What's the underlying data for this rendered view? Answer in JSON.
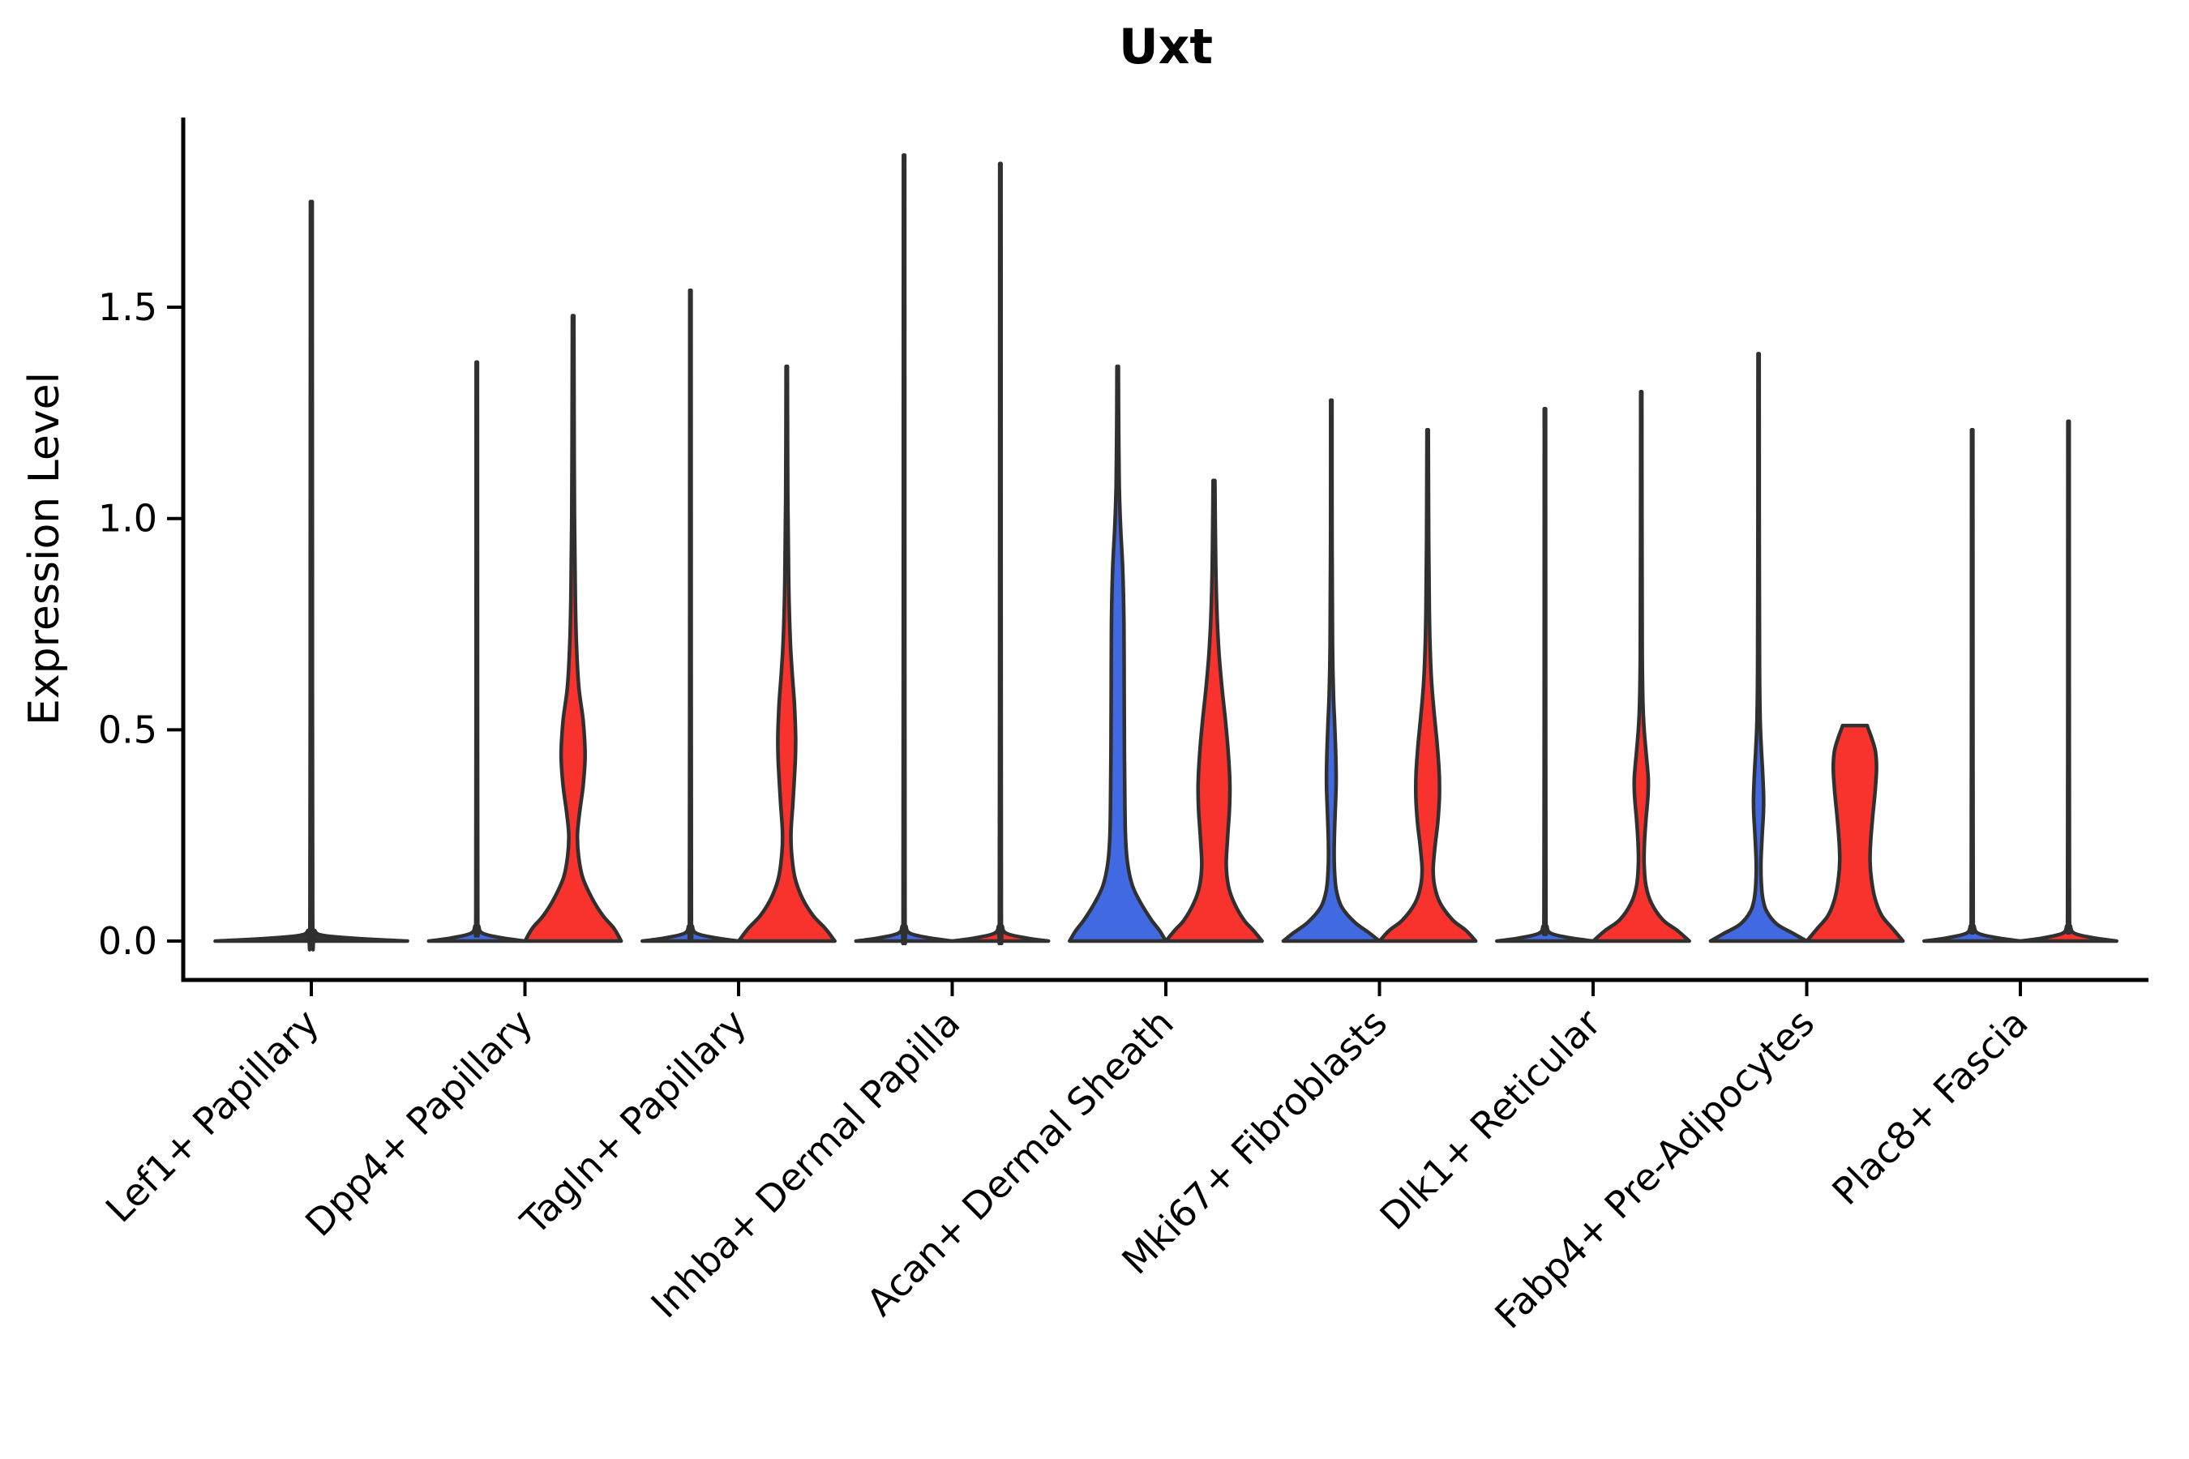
{
  "chart_data": {
    "type": "violin",
    "title": "Uxt",
    "ylabel": "Expression Level",
    "xlabel": "",
    "grid": false,
    "legend": "none",
    "ytick_labels": [
      "0.0",
      "0.5",
      "1.0",
      "1.5"
    ],
    "ytick_values": [
      0.0,
      0.5,
      1.0,
      1.5
    ],
    "ylim": [
      -0.09,
      1.95
    ],
    "colors": {
      "split_a_blue": "#4169E1",
      "split_b_red": "#F8322C",
      "single_dark": "#333333",
      "outline": "#303030",
      "axis": "#000000",
      "text": "#000000",
      "background": "#ffffff"
    },
    "categories": [
      "Lef1+ Papillary",
      "Dpp4+ Papillary",
      "Tagln+ Papillary",
      "Inhba+ Dermal Papilla",
      "Acan+ Dermal Sheath",
      "Mki67+ Fibroblasts",
      "Dlk1+ Reticular",
      "Fabp4+ Pre-Adipocytes",
      "Plac8+ Fascia"
    ],
    "groups": [
      {
        "category": "Lef1+ Papillary",
        "violins": [
          {
            "side": "single",
            "fill": "single_dark",
            "max_expression": 1.75,
            "profile": [
              [
                0,
                1
              ],
              [
                0.005,
                0.55
              ],
              [
                0.013,
                0.13
              ],
              [
                0.025,
                0.035
              ],
              [
                0.05,
                0.014
              ],
              [
                0.9,
                0.011
              ],
              [
                1.75,
                0.009
              ]
            ]
          }
        ]
      },
      {
        "category": "Dpp4+ Papillary",
        "violins": [
          {
            "side": "left",
            "fill": "split_a_blue",
            "max_expression": 1.37,
            "profile": [
              [
                0,
                1
              ],
              [
                0.007,
                0.55
              ],
              [
                0.018,
                0.13
              ],
              [
                0.035,
                0.04
              ],
              [
                0.07,
                0.02
              ],
              [
                0.7,
                0.016
              ],
              [
                1.37,
                0.013
              ]
            ]
          },
          {
            "side": "right",
            "fill": "split_b_red",
            "max_expression": 1.48,
            "profile": [
              [
                0,
                1
              ],
              [
                0.03,
                0.85
              ],
              [
                0.06,
                0.62
              ],
              [
                0.1,
                0.4
              ],
              [
                0.15,
                0.2
              ],
              [
                0.2,
                0.115
              ],
              [
                0.25,
                0.09
              ],
              [
                0.3,
                0.13
              ],
              [
                0.37,
                0.21
              ],
              [
                0.44,
                0.25
              ],
              [
                0.52,
                0.21
              ],
              [
                0.6,
                0.12
              ],
              [
                0.7,
                0.07
              ],
              [
                0.82,
                0.045
              ],
              [
                1.0,
                0.028
              ],
              [
                1.25,
                0.02
              ],
              [
                1.48,
                0.015
              ]
            ]
          }
        ]
      },
      {
        "category": "Tagln+ Papillary",
        "violins": [
          {
            "side": "left",
            "fill": "split_a_blue",
            "max_expression": 1.54,
            "profile": [
              [
                0,
                1
              ],
              [
                0.007,
                0.55
              ],
              [
                0.018,
                0.13
              ],
              [
                0.035,
                0.04
              ],
              [
                0.07,
                0.02
              ],
              [
                0.8,
                0.016
              ],
              [
                1.54,
                0.013
              ]
            ]
          },
          {
            "side": "right",
            "fill": "split_b_red",
            "max_expression": 1.36,
            "profile": [
              [
                0,
                1
              ],
              [
                0.03,
                0.8
              ],
              [
                0.06,
                0.55
              ],
              [
                0.1,
                0.33
              ],
              [
                0.15,
                0.17
              ],
              [
                0.21,
                0.1
              ],
              [
                0.26,
                0.09
              ],
              [
                0.33,
                0.13
              ],
              [
                0.42,
                0.175
              ],
              [
                0.48,
                0.185
              ],
              [
                0.56,
                0.16
              ],
              [
                0.64,
                0.11
              ],
              [
                0.72,
                0.07
              ],
              [
                0.85,
                0.04
              ],
              [
                1.05,
                0.022
              ],
              [
                1.36,
                0.014
              ]
            ]
          }
        ]
      },
      {
        "category": "Inhba+ Dermal Papilla",
        "violins": [
          {
            "side": "left",
            "fill": "split_a_blue",
            "max_expression": 1.86,
            "profile": [
              [
                0,
                1
              ],
              [
                0.007,
                0.55
              ],
              [
                0.018,
                0.13
              ],
              [
                0.035,
                0.04
              ],
              [
                0.07,
                0.02
              ],
              [
                0.95,
                0.016
              ],
              [
                1.86,
                0.013
              ]
            ]
          },
          {
            "side": "right",
            "fill": "split_b_red",
            "max_expression": 1.84,
            "profile": [
              [
                0,
                1
              ],
              [
                0.007,
                0.55
              ],
              [
                0.018,
                0.13
              ],
              [
                0.035,
                0.04
              ],
              [
                0.07,
                0.02
              ],
              [
                0.95,
                0.016
              ],
              [
                1.84,
                0.013
              ]
            ]
          }
        ]
      },
      {
        "category": "Acan+ Dermal Sheath",
        "violins": [
          {
            "side": "left",
            "fill": "split_a_blue",
            "max_expression": 1.36,
            "profile": [
              [
                0,
                1
              ],
              [
                0.025,
                0.87
              ],
              [
                0.05,
                0.7
              ],
              [
                0.09,
                0.48
              ],
              [
                0.13,
                0.31
              ],
              [
                0.18,
                0.21
              ],
              [
                0.24,
                0.165
              ],
              [
                0.32,
                0.15
              ],
              [
                0.45,
                0.14
              ],
              [
                0.6,
                0.135
              ],
              [
                0.75,
                0.13
              ],
              [
                0.88,
                0.105
              ],
              [
                0.98,
                0.06
              ],
              [
                1.08,
                0.032
              ],
              [
                1.22,
                0.02
              ],
              [
                1.36,
                0.015
              ]
            ]
          },
          {
            "side": "right",
            "fill": "split_b_red",
            "max_expression": 1.09,
            "profile": [
              [
                0,
                1
              ],
              [
                0.025,
                0.82
              ],
              [
                0.05,
                0.62
              ],
              [
                0.09,
                0.42
              ],
              [
                0.13,
                0.3
              ],
              [
                0.18,
                0.255
              ],
              [
                0.24,
                0.28
              ],
              [
                0.31,
                0.32
              ],
              [
                0.37,
                0.33
              ],
              [
                0.44,
                0.3
              ],
              [
                0.52,
                0.24
              ],
              [
                0.6,
                0.165
              ],
              [
                0.68,
                0.105
              ],
              [
                0.78,
                0.06
              ],
              [
                0.9,
                0.035
              ],
              [
                1.09,
                0.018
              ]
            ]
          }
        ]
      },
      {
        "category": "Mki67+ Fibroblasts",
        "violins": [
          {
            "side": "left",
            "fill": "split_a_blue",
            "max_expression": 1.28,
            "profile": [
              [
                0,
                1
              ],
              [
                0.02,
                0.78
              ],
              [
                0.045,
                0.48
              ],
              [
                0.08,
                0.22
              ],
              [
                0.12,
                0.105
              ],
              [
                0.17,
                0.065
              ],
              [
                0.23,
                0.06
              ],
              [
                0.3,
                0.08
              ],
              [
                0.37,
                0.1
              ],
              [
                0.43,
                0.095
              ],
              [
                0.5,
                0.075
              ],
              [
                0.58,
                0.045
              ],
              [
                0.7,
                0.025
              ],
              [
                0.95,
                0.016
              ],
              [
                1.28,
                0.013
              ]
            ]
          },
          {
            "side": "right",
            "fill": "split_b_red",
            "max_expression": 1.21,
            "profile": [
              [
                0,
                1
              ],
              [
                0.025,
                0.8
              ],
              [
                0.05,
                0.52
              ],
              [
                0.09,
                0.26
              ],
              [
                0.13,
                0.145
              ],
              [
                0.17,
                0.115
              ],
              [
                0.22,
                0.15
              ],
              [
                0.28,
                0.21
              ],
              [
                0.34,
                0.245
              ],
              [
                0.4,
                0.24
              ],
              [
                0.47,
                0.195
              ],
              [
                0.54,
                0.135
              ],
              [
                0.61,
                0.085
              ],
              [
                0.68,
                0.055
              ],
              [
                0.78,
                0.035
              ],
              [
                0.95,
                0.022
              ],
              [
                1.21,
                0.014
              ]
            ]
          }
        ]
      },
      {
        "category": "Dlk1+ Reticular",
        "violins": [
          {
            "side": "left",
            "fill": "split_a_blue",
            "max_expression": 1.26,
            "profile": [
              [
                0,
                1
              ],
              [
                0.007,
                0.55
              ],
              [
                0.018,
                0.13
              ],
              [
                0.035,
                0.04
              ],
              [
                0.07,
                0.02
              ],
              [
                0.65,
                0.016
              ],
              [
                1.26,
                0.013
              ]
            ]
          },
          {
            "side": "right",
            "fill": "split_b_red",
            "max_expression": 1.3,
            "profile": [
              [
                0,
                1
              ],
              [
                0.025,
                0.75
              ],
              [
                0.05,
                0.45
              ],
              [
                0.09,
                0.21
              ],
              [
                0.13,
                0.1
              ],
              [
                0.18,
                0.06
              ],
              [
                0.23,
                0.065
              ],
              [
                0.29,
                0.1
              ],
              [
                0.345,
                0.14
              ],
              [
                0.385,
                0.145
              ],
              [
                0.44,
                0.105
              ],
              [
                0.5,
                0.06
              ],
              [
                0.56,
                0.035
              ],
              [
                0.68,
                0.02
              ],
              [
                0.95,
                0.015
              ],
              [
                1.3,
                0.012
              ]
            ]
          }
        ]
      },
      {
        "category": "Fabp4+ Pre-Adipocytes",
        "violins": [
          {
            "side": "left",
            "fill": "split_a_blue",
            "max_expression": 1.39,
            "profile": [
              [
                0,
                1
              ],
              [
                0.018,
                0.72
              ],
              [
                0.04,
                0.38
              ],
              [
                0.07,
                0.17
              ],
              [
                0.1,
                0.09
              ],
              [
                0.14,
                0.055
              ],
              [
                0.19,
                0.05
              ],
              [
                0.25,
                0.075
              ],
              [
                0.3,
                0.1
              ],
              [
                0.34,
                0.105
              ],
              [
                0.4,
                0.085
              ],
              [
                0.46,
                0.055
              ],
              [
                0.53,
                0.032
              ],
              [
                0.65,
                0.02
              ],
              [
                1.0,
                0.014
              ],
              [
                1.39,
                0.012
              ]
            ]
          },
          {
            "side": "right",
            "fill": "split_b_red",
            "max_expression": 0.51,
            "profile": [
              [
                0,
                1
              ],
              [
                0.03,
                0.78
              ],
              [
                0.06,
                0.56
              ],
              [
                0.1,
                0.42
              ],
              [
                0.145,
                0.345
              ],
              [
                0.19,
                0.315
              ],
              [
                0.24,
                0.33
              ],
              [
                0.3,
                0.375
              ],
              [
                0.36,
                0.425
              ],
              [
                0.41,
                0.45
              ],
              [
                0.45,
                0.425
              ],
              [
                0.48,
                0.35
              ],
              [
                0.505,
                0.27
              ],
              [
                0.51,
                0.255
              ]
            ]
          }
        ]
      },
      {
        "category": "Plac8+ Fascia",
        "violins": [
          {
            "side": "left",
            "fill": "split_a_blue",
            "max_expression": 1.21,
            "profile": [
              [
                0,
                1
              ],
              [
                0.007,
                0.55
              ],
              [
                0.018,
                0.13
              ],
              [
                0.035,
                0.04
              ],
              [
                0.07,
                0.02
              ],
              [
                0.6,
                0.016
              ],
              [
                1.21,
                0.013
              ]
            ]
          },
          {
            "side": "right",
            "fill": "split_b_red",
            "max_expression": 1.23,
            "profile": [
              [
                0,
                1
              ],
              [
                0.007,
                0.55
              ],
              [
                0.018,
                0.13
              ],
              [
                0.035,
                0.04
              ],
              [
                0.07,
                0.02
              ],
              [
                0.6,
                0.016
              ],
              [
                1.23,
                0.013
              ]
            ]
          }
        ]
      }
    ]
  }
}
